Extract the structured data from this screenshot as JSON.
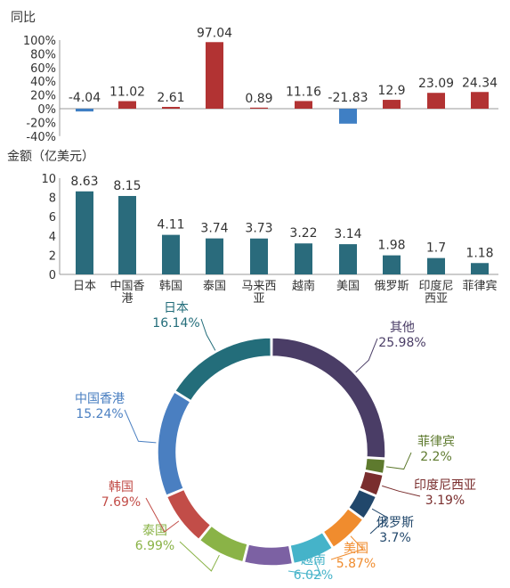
{
  "colors": {
    "positive": "#b23333",
    "negative": "#3f7fc4",
    "bar": "#2a6b7c",
    "axis": "#9a9a9a",
    "text": "#333333"
  },
  "chart_data": [
    {
      "type": "bar",
      "title": "同比",
      "categories": [
        "日本",
        "中国香港",
        "韩国",
        "泰国",
        "马来西亚",
        "越南",
        "美国",
        "俄罗斯",
        "印度尼西亚",
        "菲律宾"
      ],
      "values": [
        -4.04,
        11.02,
        2.61,
        97.04,
        0.89,
        11.16,
        -21.83,
        12.9,
        23.09,
        24.34
      ],
      "value_labels": [
        "-4.04",
        "11.02",
        "2.61",
        "97.04",
        "0.89",
        "11.16",
        "-21.83",
        "12.9",
        "23.09",
        "24.34"
      ],
      "ylim": [
        -40,
        100
      ],
      "yticks": [
        "100%",
        "80%",
        "60%",
        "40%",
        "20%",
        "0%",
        "-20%",
        "-40%"
      ],
      "grid": false
    },
    {
      "type": "bar",
      "title": "金额（亿美元）",
      "categories": [
        "日本",
        "中国香港",
        "韩国",
        "泰国",
        "马来西亚",
        "越南",
        "美国",
        "俄罗斯",
        "印度尼西亚",
        "菲律宾"
      ],
      "category_lines": [
        [
          "日本"
        ],
        [
          "中国香",
          "港"
        ],
        [
          "韩国"
        ],
        [
          "泰国"
        ],
        [
          "马来西",
          "亚"
        ],
        [
          "越南"
        ],
        [
          "美国"
        ],
        [
          "俄罗斯"
        ],
        [
          "印度尼",
          "西亚"
        ],
        [
          "菲律宾"
        ]
      ],
      "values": [
        8.63,
        8.15,
        4.11,
        3.74,
        3.73,
        3.22,
        3.14,
        1.98,
        1.7,
        1.18
      ],
      "value_labels": [
        "8.63",
        "8.15",
        "4.11",
        "3.74",
        "3.73",
        "3.22",
        "3.14",
        "1.98",
        "1.7",
        "1.18"
      ],
      "ylim": [
        0,
        10
      ],
      "yticks": [
        "10",
        "8",
        "6",
        "4",
        "2",
        "0"
      ],
      "grid": false
    },
    {
      "type": "pie",
      "donut": true,
      "slices": [
        {
          "name": "其他",
          "value": 25.98,
          "label": "25.98%",
          "color": "#4a3d66"
        },
        {
          "name": "菲律宾",
          "value": 2.2,
          "label": "2.2%",
          "color": "#5e7a2e"
        },
        {
          "name": "印度尼西亚",
          "value": 3.19,
          "label": "3.19%",
          "color": "#7a2e2e"
        },
        {
          "name": "俄罗斯",
          "value": 3.7,
          "label": "3.7%",
          "color": "#21476b"
        },
        {
          "name": "美国",
          "value": 5.87,
          "label": "5.87%",
          "color": "#f08c2e"
        },
        {
          "name": "越南",
          "value": 6.02,
          "label": "6.02%",
          "color": "#45b3c9"
        },
        {
          "name": "马来西亚",
          "value": 6.99,
          "label": "",
          "color": "#7c61a3"
        },
        {
          "name": "泰国",
          "value": 6.99,
          "label": "6.99%",
          "color": "#8ab347"
        },
        {
          "name": "韩国",
          "value": 7.69,
          "label": "7.69%",
          "color": "#c24d48"
        },
        {
          "name": "中国香港",
          "value": 15.24,
          "label": "15.24%",
          "color": "#4a7fc1"
        },
        {
          "name": "日本",
          "value": 16.14,
          "label": "16.14%",
          "color": "#236d7a"
        }
      ]
    }
  ]
}
